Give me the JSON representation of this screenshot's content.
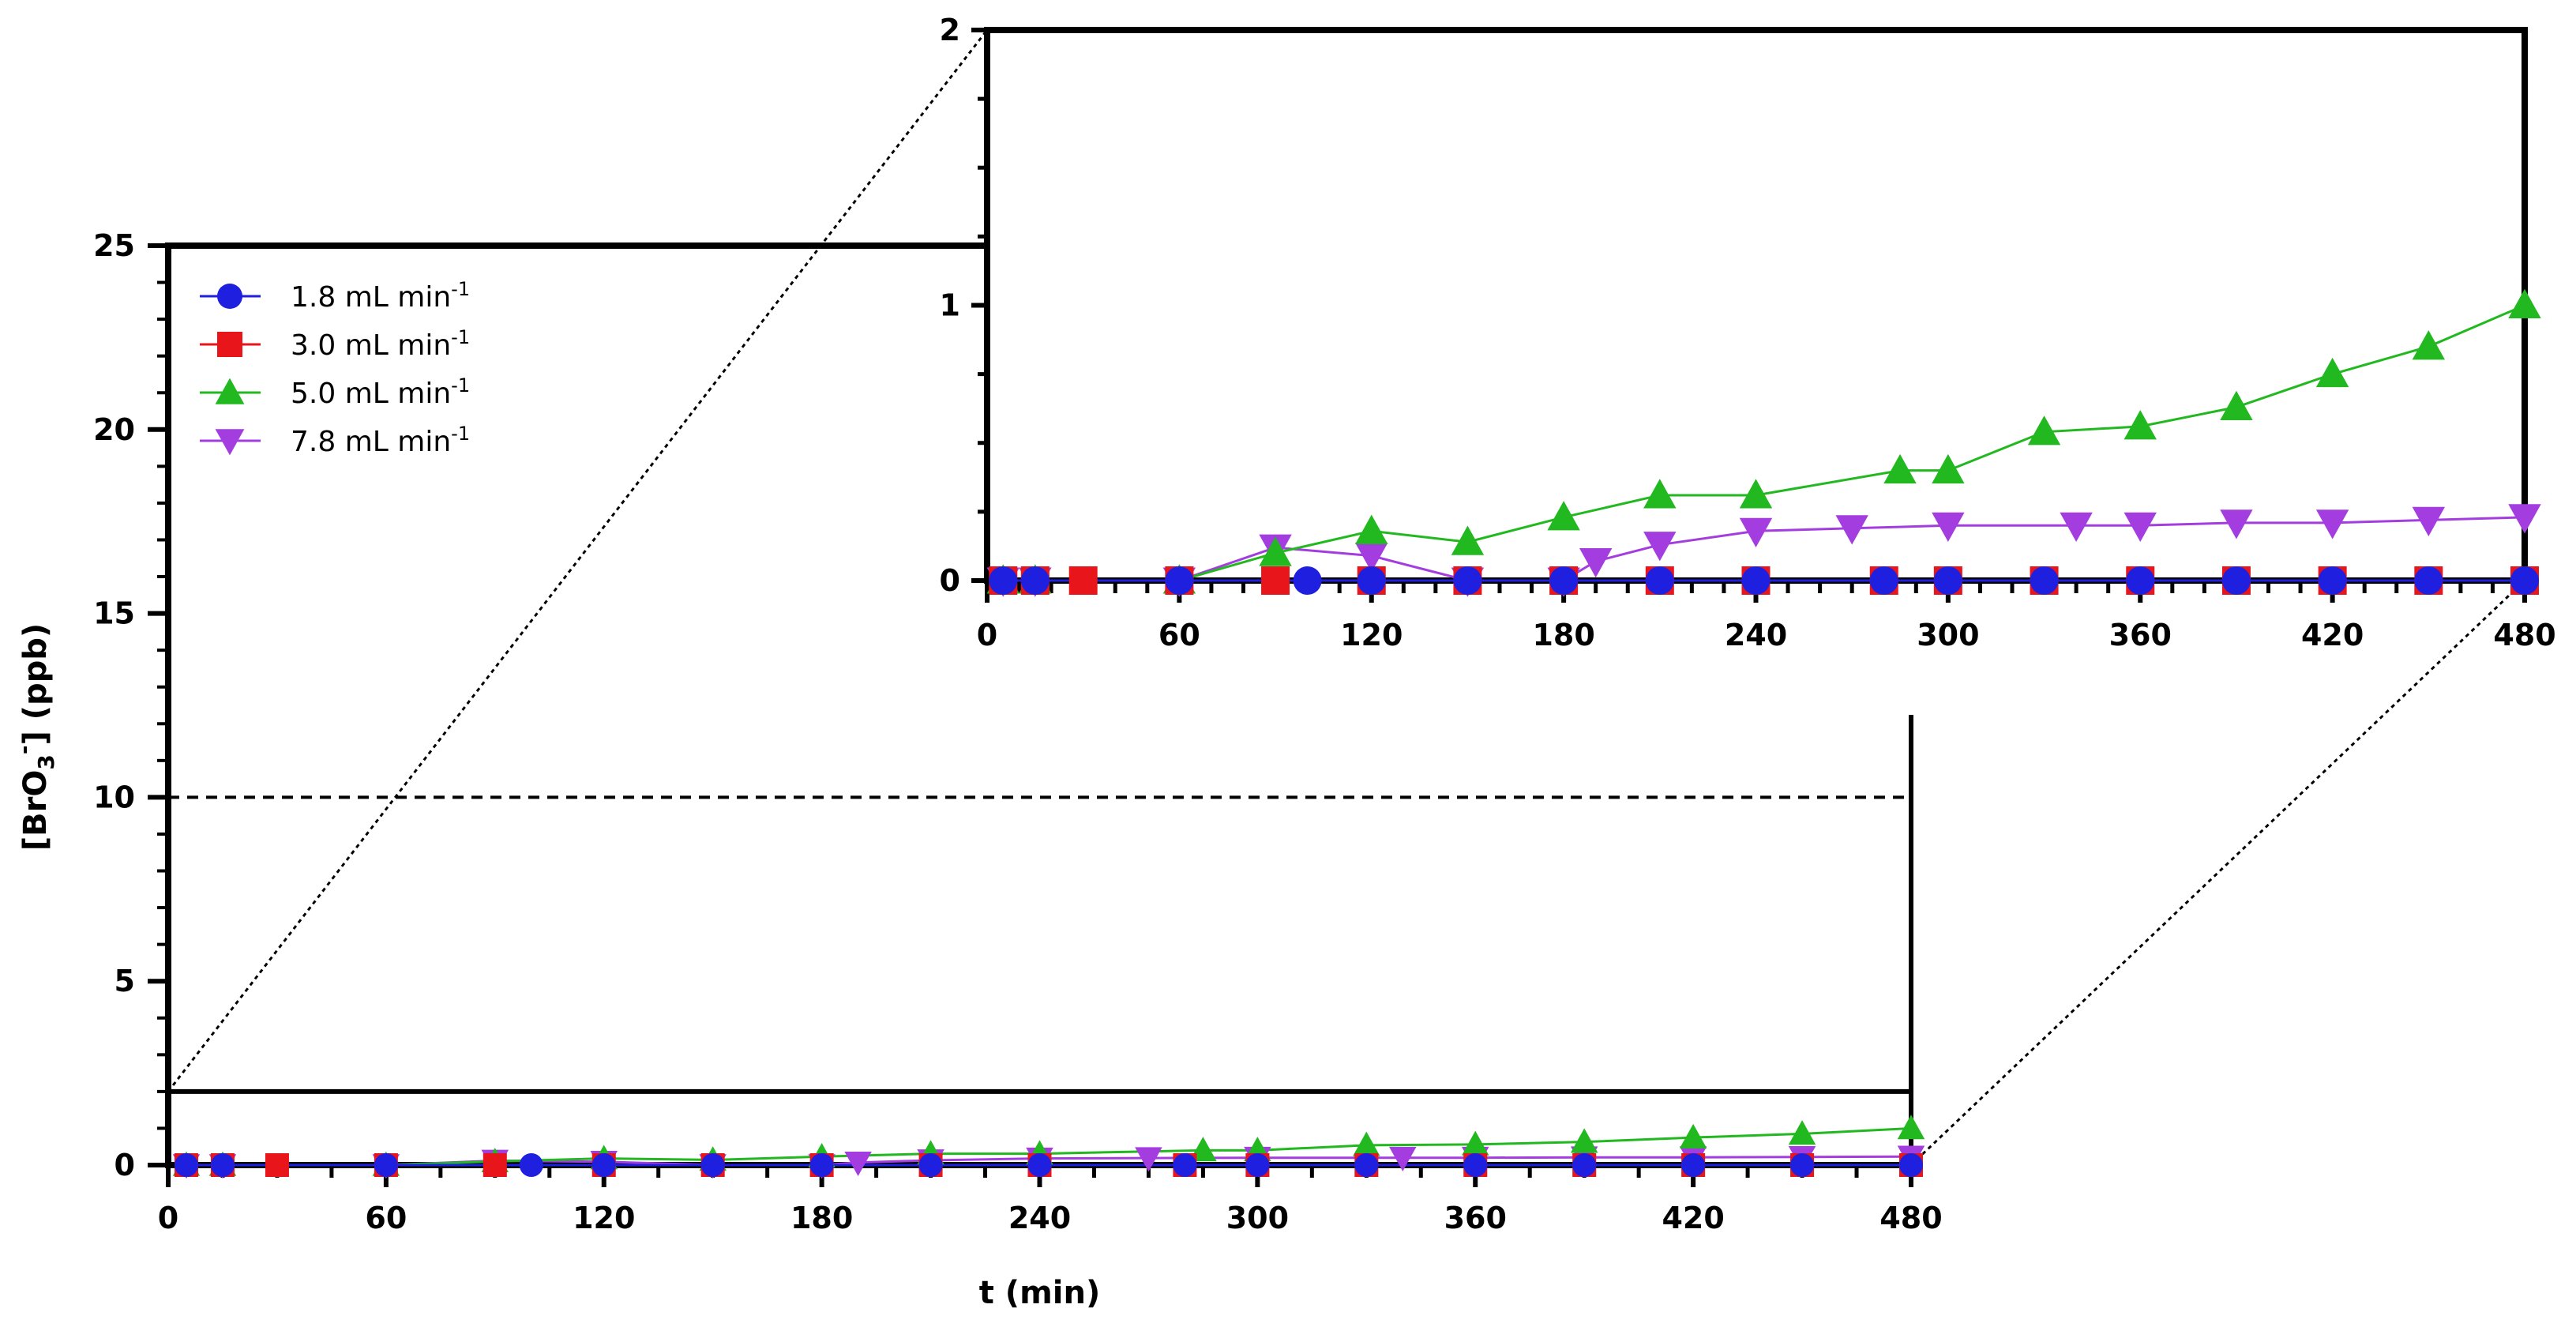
{
  "chart_data": [
    {
      "type": "line",
      "panel": "main",
      "xlabel": "t (min)",
      "ylabel": {
        "main": "[BrO",
        "sub": "3",
        "sup": "-",
        "unit": "] (ppb)"
      },
      "xlim": [
        0,
        480
      ],
      "ylim": [
        0,
        25
      ],
      "xticks": [
        "0",
        "60",
        "120",
        "180",
        "240",
        "300",
        "360",
        "420",
        "480"
      ],
      "yticks": [
        "0",
        "5",
        "10",
        "15",
        "20",
        "25"
      ],
      "reference_line": {
        "y": 10,
        "style": "dashed"
      },
      "legend": {
        "placement": "top-left"
      },
      "grid": false,
      "series": [
        {
          "name": "1.8 mL min",
          "superscript": "-1",
          "marker": "circle",
          "color": "#1f1fe0",
          "x": [
            5,
            15,
            60,
            100,
            120,
            150,
            180,
            210,
            240,
            280,
            300,
            330,
            360,
            390,
            420,
            450,
            480
          ],
          "y": [
            0,
            0,
            0,
            0,
            0,
            0,
            0,
            0,
            0,
            0,
            0,
            0,
            0,
            0,
            0,
            0,
            0
          ]
        },
        {
          "name": "3.0 mL min",
          "superscript": "-1",
          "marker": "square",
          "color": "#e8151b",
          "x": [
            5,
            15,
            30,
            60,
            90,
            120,
            150,
            180,
            210,
            240,
            280,
            300,
            330,
            360,
            390,
            420,
            450,
            480
          ],
          "y": [
            0,
            0,
            0,
            0,
            0,
            0,
            0,
            0,
            0,
            0,
            0,
            0,
            0,
            0,
            0,
            0,
            0,
            0
          ]
        },
        {
          "name": "5.0 mL min",
          "superscript": "-1",
          "marker": "triangle-up",
          "color": "#22b81f",
          "x": [
            5,
            15,
            60,
            90,
            120,
            150,
            180,
            210,
            240,
            285,
            300,
            330,
            360,
            390,
            420,
            450,
            480
          ],
          "y": [
            0,
            0,
            0,
            0.1,
            0.18,
            0.14,
            0.23,
            0.31,
            0.31,
            0.4,
            0.4,
            0.54,
            0.56,
            0.63,
            0.75,
            0.85,
            1.0
          ]
        },
        {
          "name": "7.8 mL min",
          "superscript": "-1",
          "marker": "triangle-down",
          "color": "#a43de0",
          "x": [
            5,
            15,
            60,
            90,
            120,
            150,
            180,
            190,
            210,
            240,
            270,
            300,
            340,
            360,
            390,
            420,
            450,
            480
          ],
          "y": [
            0,
            0,
            0,
            0.12,
            0.09,
            0,
            0,
            0.07,
            0.13,
            0.18,
            0.19,
            0.2,
            0.2,
            0.2,
            0.21,
            0.21,
            0.22,
            0.23
          ]
        }
      ]
    },
    {
      "type": "line",
      "panel": "inset",
      "xlim": [
        0,
        480
      ],
      "ylim": [
        0,
        2
      ],
      "xticks": [
        "0",
        "60",
        "120",
        "180",
        "240",
        "300",
        "360",
        "420",
        "480"
      ],
      "yticks": [
        "0",
        "1",
        "2"
      ],
      "grid": false
    }
  ]
}
